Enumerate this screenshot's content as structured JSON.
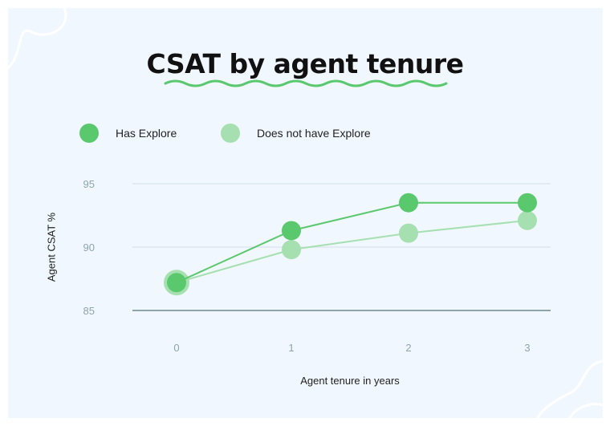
{
  "chart_data": {
    "type": "line",
    "title": "CSAT by agent tenure",
    "xlabel": "Agent tenure in years",
    "ylabel": "Agent CSAT %",
    "x": [
      0,
      1,
      2,
      3
    ],
    "x_ticks": [
      "0",
      "1",
      "2",
      "3"
    ],
    "y_ticks": [
      "85",
      "90",
      "95"
    ],
    "ylim": [
      85,
      97
    ],
    "grid": true,
    "legend_position": "top-left",
    "series": [
      {
        "name": "Has Explore",
        "values": [
          87.2,
          91.3,
          93.5,
          93.5
        ],
        "color": "#5ac86d"
      },
      {
        "name": "Does not have Explore",
        "values": [
          87.2,
          89.8,
          91.1,
          92.1
        ],
        "color": "#a6e0b0"
      }
    ]
  },
  "colors": {
    "background": "#f1f7fe",
    "accent_underline": "#5ac86d",
    "grid": "#dde6ef",
    "baseline": "#8fa3ad",
    "tick_text": "#8fa3ad"
  }
}
